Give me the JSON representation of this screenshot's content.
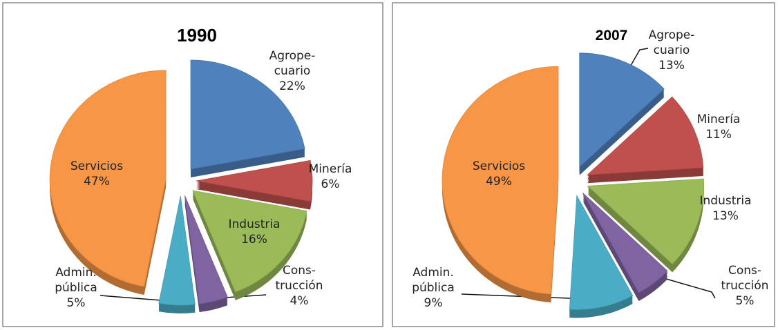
{
  "chart_data": [
    {
      "type": "pie",
      "title": "1990",
      "categories": [
        "Agrope-cuario",
        "Minería",
        "Industria",
        "Cons-trucción",
        "Admin. pública",
        "Servicios"
      ],
      "values": [
        22,
        6,
        16,
        4,
        5,
        47
      ],
      "value_labels": [
        "22%",
        "6%",
        "16%",
        "4%",
        "5%",
        "47%"
      ],
      "colors": [
        "#4f81bd",
        "#c0504d",
        "#9bbb59",
        "#8064a2",
        "#4bacc6",
        "#f79646"
      ]
    },
    {
      "type": "pie",
      "title": "2007",
      "categories": [
        "Agrope-cuario",
        "Minería",
        "Industria",
        "Cons-trucción",
        "Admin. pública",
        "Servicios"
      ],
      "values": [
        13,
        11,
        13,
        5,
        9,
        49
      ],
      "value_labels": [
        "13%",
        "11%",
        "13%",
        "5%",
        "9%",
        "49%"
      ],
      "colors": [
        "#4f81bd",
        "#c0504d",
        "#9bbb59",
        "#8064a2",
        "#4bacc6",
        "#f79646"
      ]
    }
  ]
}
